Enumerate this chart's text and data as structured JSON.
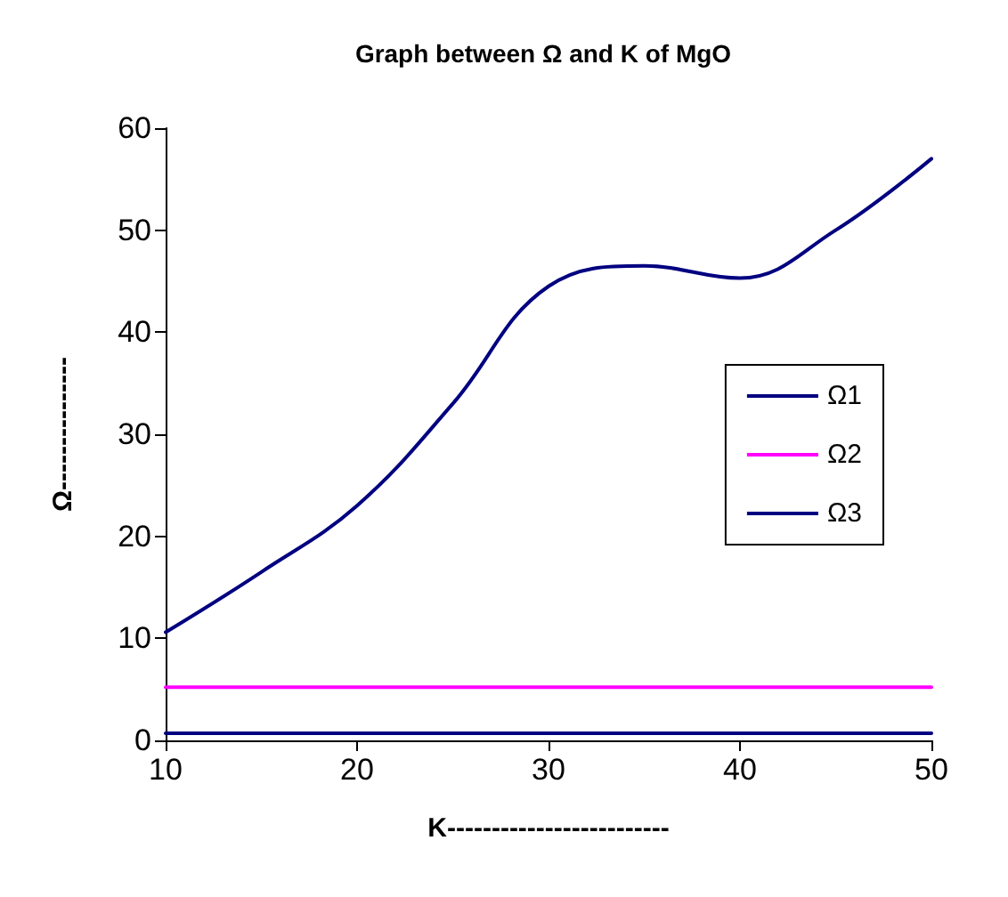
{
  "chart_data": {
    "type": "line",
    "title": "Graph between Ω and K of MgO",
    "xlabel": "K-------------------------",
    "ylabel": "Ω---------------",
    "series": [
      {
        "name": "Ω1",
        "color": "#000080",
        "x": [
          10,
          15,
          20,
          25,
          30,
          35,
          40,
          45,
          50
        ],
        "values": [
          10.6,
          16.5,
          23,
          33,
          44.5,
          46.5,
          45.3,
          50,
          57
        ]
      },
      {
        "name": "Ω2",
        "color": "#ff00ff",
        "x": [
          10,
          20,
          30,
          40,
          50
        ],
        "values": [
          5.2,
          5.2,
          5.2,
          5.2,
          5.2
        ]
      },
      {
        "name": "Ω3",
        "color": "#000080",
        "x": [
          10,
          20,
          30,
          40,
          50
        ],
        "values": [
          0.7,
          0.7,
          0.7,
          0.7,
          0.7
        ]
      }
    ],
    "xlim": [
      10,
      50
    ],
    "xticks": [
      10,
      20,
      30,
      40,
      50
    ],
    "ylim": [
      0,
      60
    ],
    "yticks": [
      0,
      10,
      20,
      30,
      40,
      50,
      60
    ],
    "grid": false,
    "legend": "right",
    "marker": "none",
    "line_style": "solid"
  }
}
